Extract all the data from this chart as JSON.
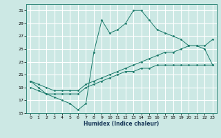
{
  "xlabel": "Humidex (Indice chaleur)",
  "bg_color": "#cce8e4",
  "grid_color": "#ffffff",
  "line_color": "#1a7a6a",
  "xlim": [
    -0.5,
    23.5
  ],
  "ylim": [
    15,
    32
  ],
  "yticks": [
    15,
    17,
    19,
    21,
    23,
    25,
    27,
    29,
    31
  ],
  "xticks": [
    0,
    1,
    2,
    3,
    4,
    5,
    6,
    7,
    8,
    9,
    10,
    11,
    12,
    13,
    14,
    15,
    16,
    17,
    18,
    19,
    20,
    21,
    22,
    23
  ],
  "series": [
    [
      20.0,
      19.0,
      18.0,
      17.5,
      17.0,
      16.5,
      15.5,
      16.5,
      24.5,
      29.5,
      27.5,
      28.0,
      29.0,
      31.0,
      31.0,
      29.5,
      28.0,
      27.5,
      27.0,
      26.5,
      25.5,
      25.5,
      25.0,
      22.5
    ],
    [
      20.0,
      19.5,
      19.0,
      18.5,
      18.5,
      18.5,
      18.5,
      19.5,
      20.0,
      20.5,
      21.0,
      21.5,
      22.0,
      22.5,
      23.0,
      23.5,
      24.0,
      24.5,
      24.5,
      25.0,
      25.5,
      25.5,
      25.5,
      26.5
    ],
    [
      19.0,
      18.5,
      18.0,
      18.0,
      18.0,
      18.0,
      18.0,
      19.0,
      19.5,
      20.0,
      20.5,
      21.0,
      21.5,
      21.5,
      22.0,
      22.0,
      22.5,
      22.5,
      22.5,
      22.5,
      22.5,
      22.5,
      22.5,
      22.5
    ]
  ]
}
